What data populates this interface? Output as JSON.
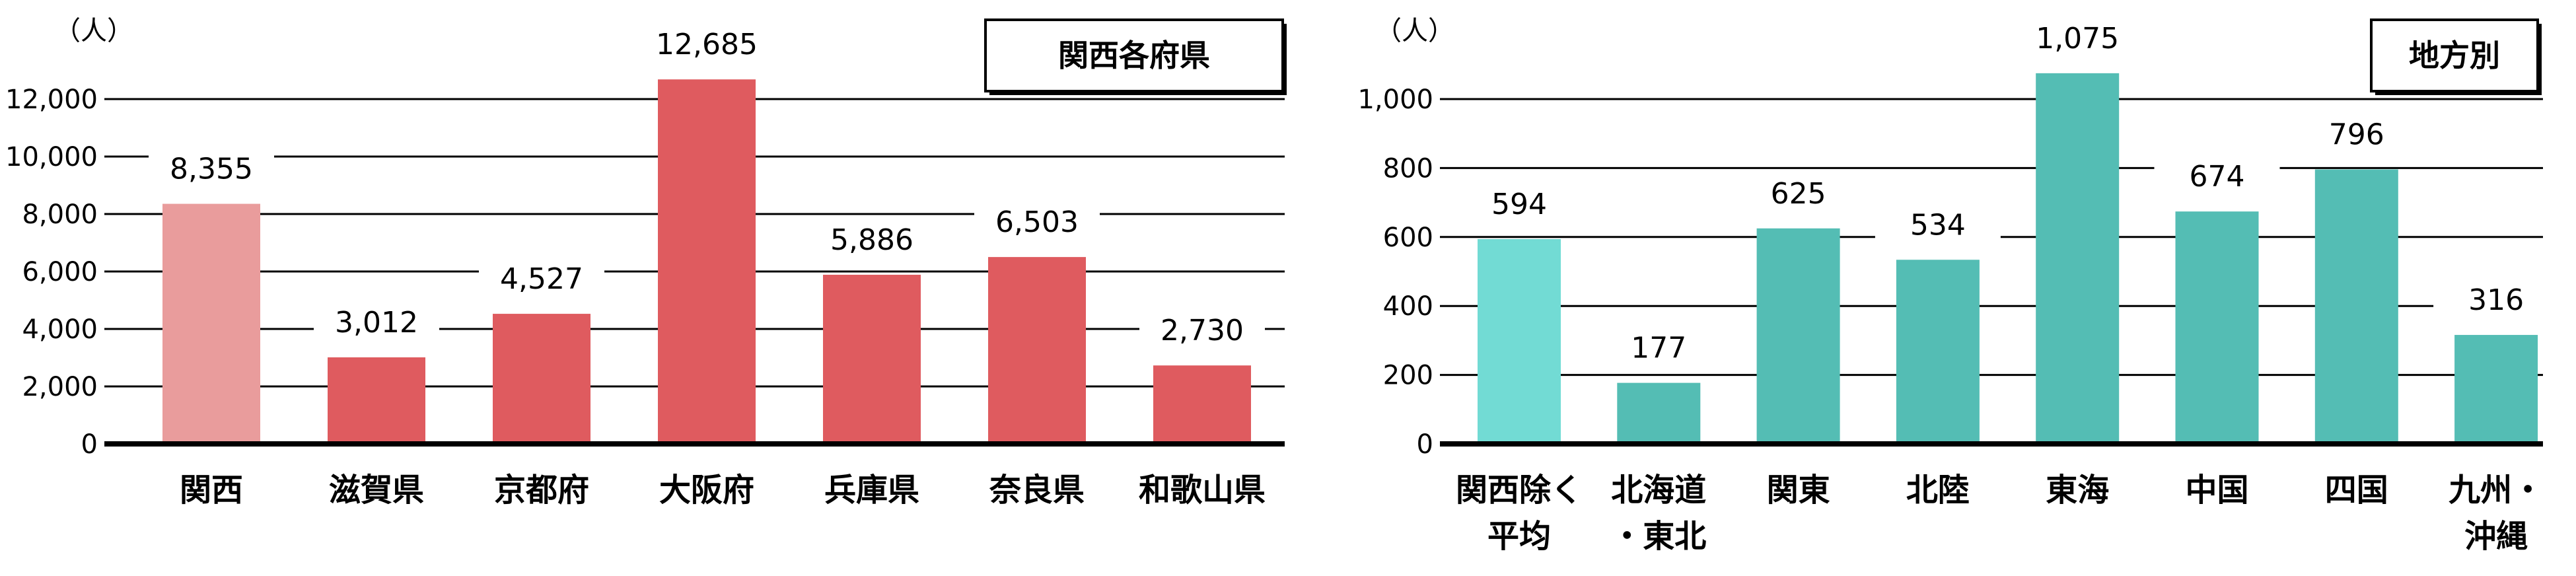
{
  "chart_data": [
    {
      "type": "bar",
      "title": "関西各府県",
      "unit": "（人）",
      "categories": [
        "関西",
        "滋賀県",
        "京都府",
        "大阪府",
        "兵庫県",
        "奈良県",
        "和歌山県"
      ],
      "values": [
        8355,
        3012,
        4527,
        12685,
        5886,
        6503,
        2730
      ],
      "value_labels": [
        "8,355",
        "3,012",
        "4,527",
        "12,685",
        "5,886",
        "6,503",
        "2,730"
      ],
      "ylim": [
        0,
        12000
      ],
      "yticks": [
        0,
        2000,
        4000,
        6000,
        8000,
        10000,
        12000
      ],
      "ytick_labels": [
        "0",
        "2,000",
        "4,000",
        "6,000",
        "8,000",
        "10,000",
        "12,000"
      ],
      "colors": [
        "#e99c9c",
        "#df5b5f",
        "#df5b5f",
        "#df5b5f",
        "#df5b5f",
        "#df5b5f",
        "#df5b5f"
      ],
      "grid": true
    },
    {
      "type": "bar",
      "title": "地方別",
      "unit": "（人）",
      "categories": [
        "関西除く平均",
        "北海道・東北",
        "関東",
        "北陸",
        "東海",
        "中国",
        "四国",
        "九州・沖縄"
      ],
      "category_lines": [
        [
          "関西除く",
          "平均"
        ],
        [
          "北海道",
          "・東北"
        ],
        [
          "関東"
        ],
        [
          "北陸"
        ],
        [
          "東海"
        ],
        [
          "中国"
        ],
        [
          "四国"
        ],
        [
          "九州・",
          "沖縄"
        ]
      ],
      "values": [
        594,
        177,
        625,
        534,
        1075,
        674,
        796,
        316
      ],
      "value_labels": [
        "594",
        "177",
        "625",
        "534",
        "1,075",
        "674",
        "796",
        "316"
      ],
      "ylim": [
        0,
        1000
      ],
      "yticks": [
        0,
        200,
        400,
        600,
        800,
        1000
      ],
      "ytick_labels": [
        "0",
        "200",
        "400",
        "600",
        "800",
        "1,000"
      ],
      "colors": [
        "#72dbd4",
        "#54bdb4",
        "#54bdb4",
        "#54bdb4",
        "#54bdb4",
        "#54bdb4",
        "#54bdb4",
        "#54bdb4"
      ],
      "grid": true
    }
  ]
}
